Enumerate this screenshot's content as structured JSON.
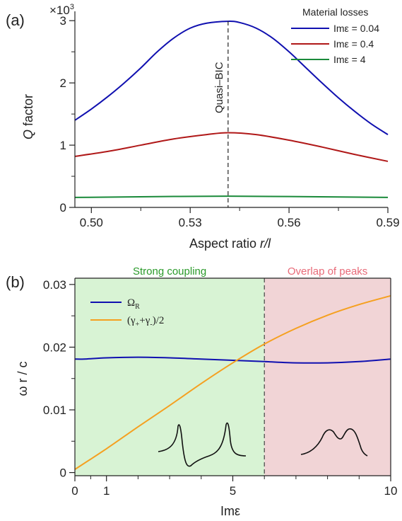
{
  "chart_data": [
    {
      "panel_label": "(a)",
      "type": "line",
      "xlabel": "Aspect ratio r/l",
      "ylabel": "Q factor",
      "y_multiplier": "x10^3",
      "xlim": [
        0.495,
        0.59
      ],
      "ylim": [
        0,
        3.15
      ],
      "xticks": [
        0.5,
        0.53,
        0.56,
        0.59
      ],
      "xtick_labels": [
        "0.50",
        "0.53",
        "0.56",
        "0.59"
      ],
      "xminor": [
        0.515,
        0.545,
        0.575
      ],
      "yticks": [
        0,
        1,
        2,
        3
      ],
      "ytick_labels": [
        "0",
        "1",
        "2",
        "3"
      ],
      "yminor": [
        0.5,
        1.5,
        2.5
      ],
      "legend_title": "Material losses",
      "legend_position": "top-right",
      "annotation": "Quasi–BIC",
      "vline_x": 0.5415,
      "colors": {
        "blue": "#1010b0",
        "red": "#b01818",
        "green": "#1a8a3a"
      },
      "series": [
        {
          "name": "Imε = 0.04",
          "color": "#1010b0",
          "x": [
            0.495,
            0.5,
            0.505,
            0.51,
            0.515,
            0.52,
            0.525,
            0.53,
            0.535,
            0.5415,
            0.545,
            0.55,
            0.555,
            0.56,
            0.565,
            0.57,
            0.575,
            0.58,
            0.585,
            0.59
          ],
          "y": [
            1.4,
            1.58,
            1.78,
            2.0,
            2.24,
            2.5,
            2.72,
            2.88,
            2.96,
            2.99,
            2.97,
            2.88,
            2.72,
            2.5,
            2.25,
            2.0,
            1.76,
            1.54,
            1.34,
            1.17
          ]
        },
        {
          "name": "Imε = 0.4",
          "color": "#b01818",
          "x": [
            0.495,
            0.505,
            0.515,
            0.525,
            0.535,
            0.5415,
            0.55,
            0.56,
            0.57,
            0.58,
            0.59
          ],
          "y": [
            0.82,
            0.9,
            1.0,
            1.1,
            1.17,
            1.2,
            1.17,
            1.08,
            0.97,
            0.85,
            0.74
          ]
        },
        {
          "name": "Imε = 4",
          "color": "#1a8a3a",
          "x": [
            0.495,
            0.5415,
            0.59
          ],
          "y": [
            0.16,
            0.18,
            0.16
          ]
        }
      ]
    },
    {
      "panel_label": "(b)",
      "type": "line",
      "xlabel": "Imε",
      "ylabel": "ω r / c",
      "xlim": [
        0,
        10
      ],
      "ylim": [
        -0.0005,
        0.031
      ],
      "xticks": [
        0,
        1,
        5,
        10
      ],
      "xtick_labels": [
        "0",
        "1",
        "5",
        "10"
      ],
      "xminor": [
        0.5,
        2,
        3,
        4,
        6,
        7,
        8,
        9
      ],
      "yticks": [
        0,
        0.01,
        0.02,
        0.03
      ],
      "ytick_labels": [
        "0",
        "0.01",
        "0.02",
        "0.03"
      ],
      "yminor": [
        0.005,
        0.015,
        0.025
      ],
      "vline_x": 6,
      "regions": [
        {
          "label": "Strong coupling",
          "from": 0,
          "to": 6,
          "color": "#d8f3d4",
          "text_color": "#2a9a2a"
        },
        {
          "label": "Overlap of peaks",
          "from": 6,
          "to": 10,
          "color": "#f1d4d6",
          "text_color": "#e86a78"
        }
      ],
      "legend_position": "top-left",
      "series": [
        {
          "name": "Ω_R",
          "label_main": "Ω",
          "label_sub": "R",
          "color": "#1010b0",
          "x": [
            0,
            0.3,
            1,
            2,
            3,
            4,
            5,
            6,
            7,
            8,
            9,
            10
          ],
          "y": [
            0.0181,
            0.0181,
            0.0183,
            0.0184,
            0.0183,
            0.0181,
            0.0179,
            0.0177,
            0.0175,
            0.0175,
            0.0177,
            0.0181
          ]
        },
        {
          "name": "(γ₊+γ₋)/2",
          "label_parts": [
            "(γ",
            "+",
            "+γ",
            "-",
            ")/2"
          ],
          "color": "#f5a020",
          "x": [
            0,
            1,
            2,
            3,
            4,
            5,
            6,
            7,
            8,
            9,
            10
          ],
          "y": [
            0.0005,
            0.0038,
            0.0073,
            0.0107,
            0.0142,
            0.0175,
            0.0205,
            0.023,
            0.0251,
            0.0268,
            0.0282
          ]
        }
      ]
    }
  ]
}
